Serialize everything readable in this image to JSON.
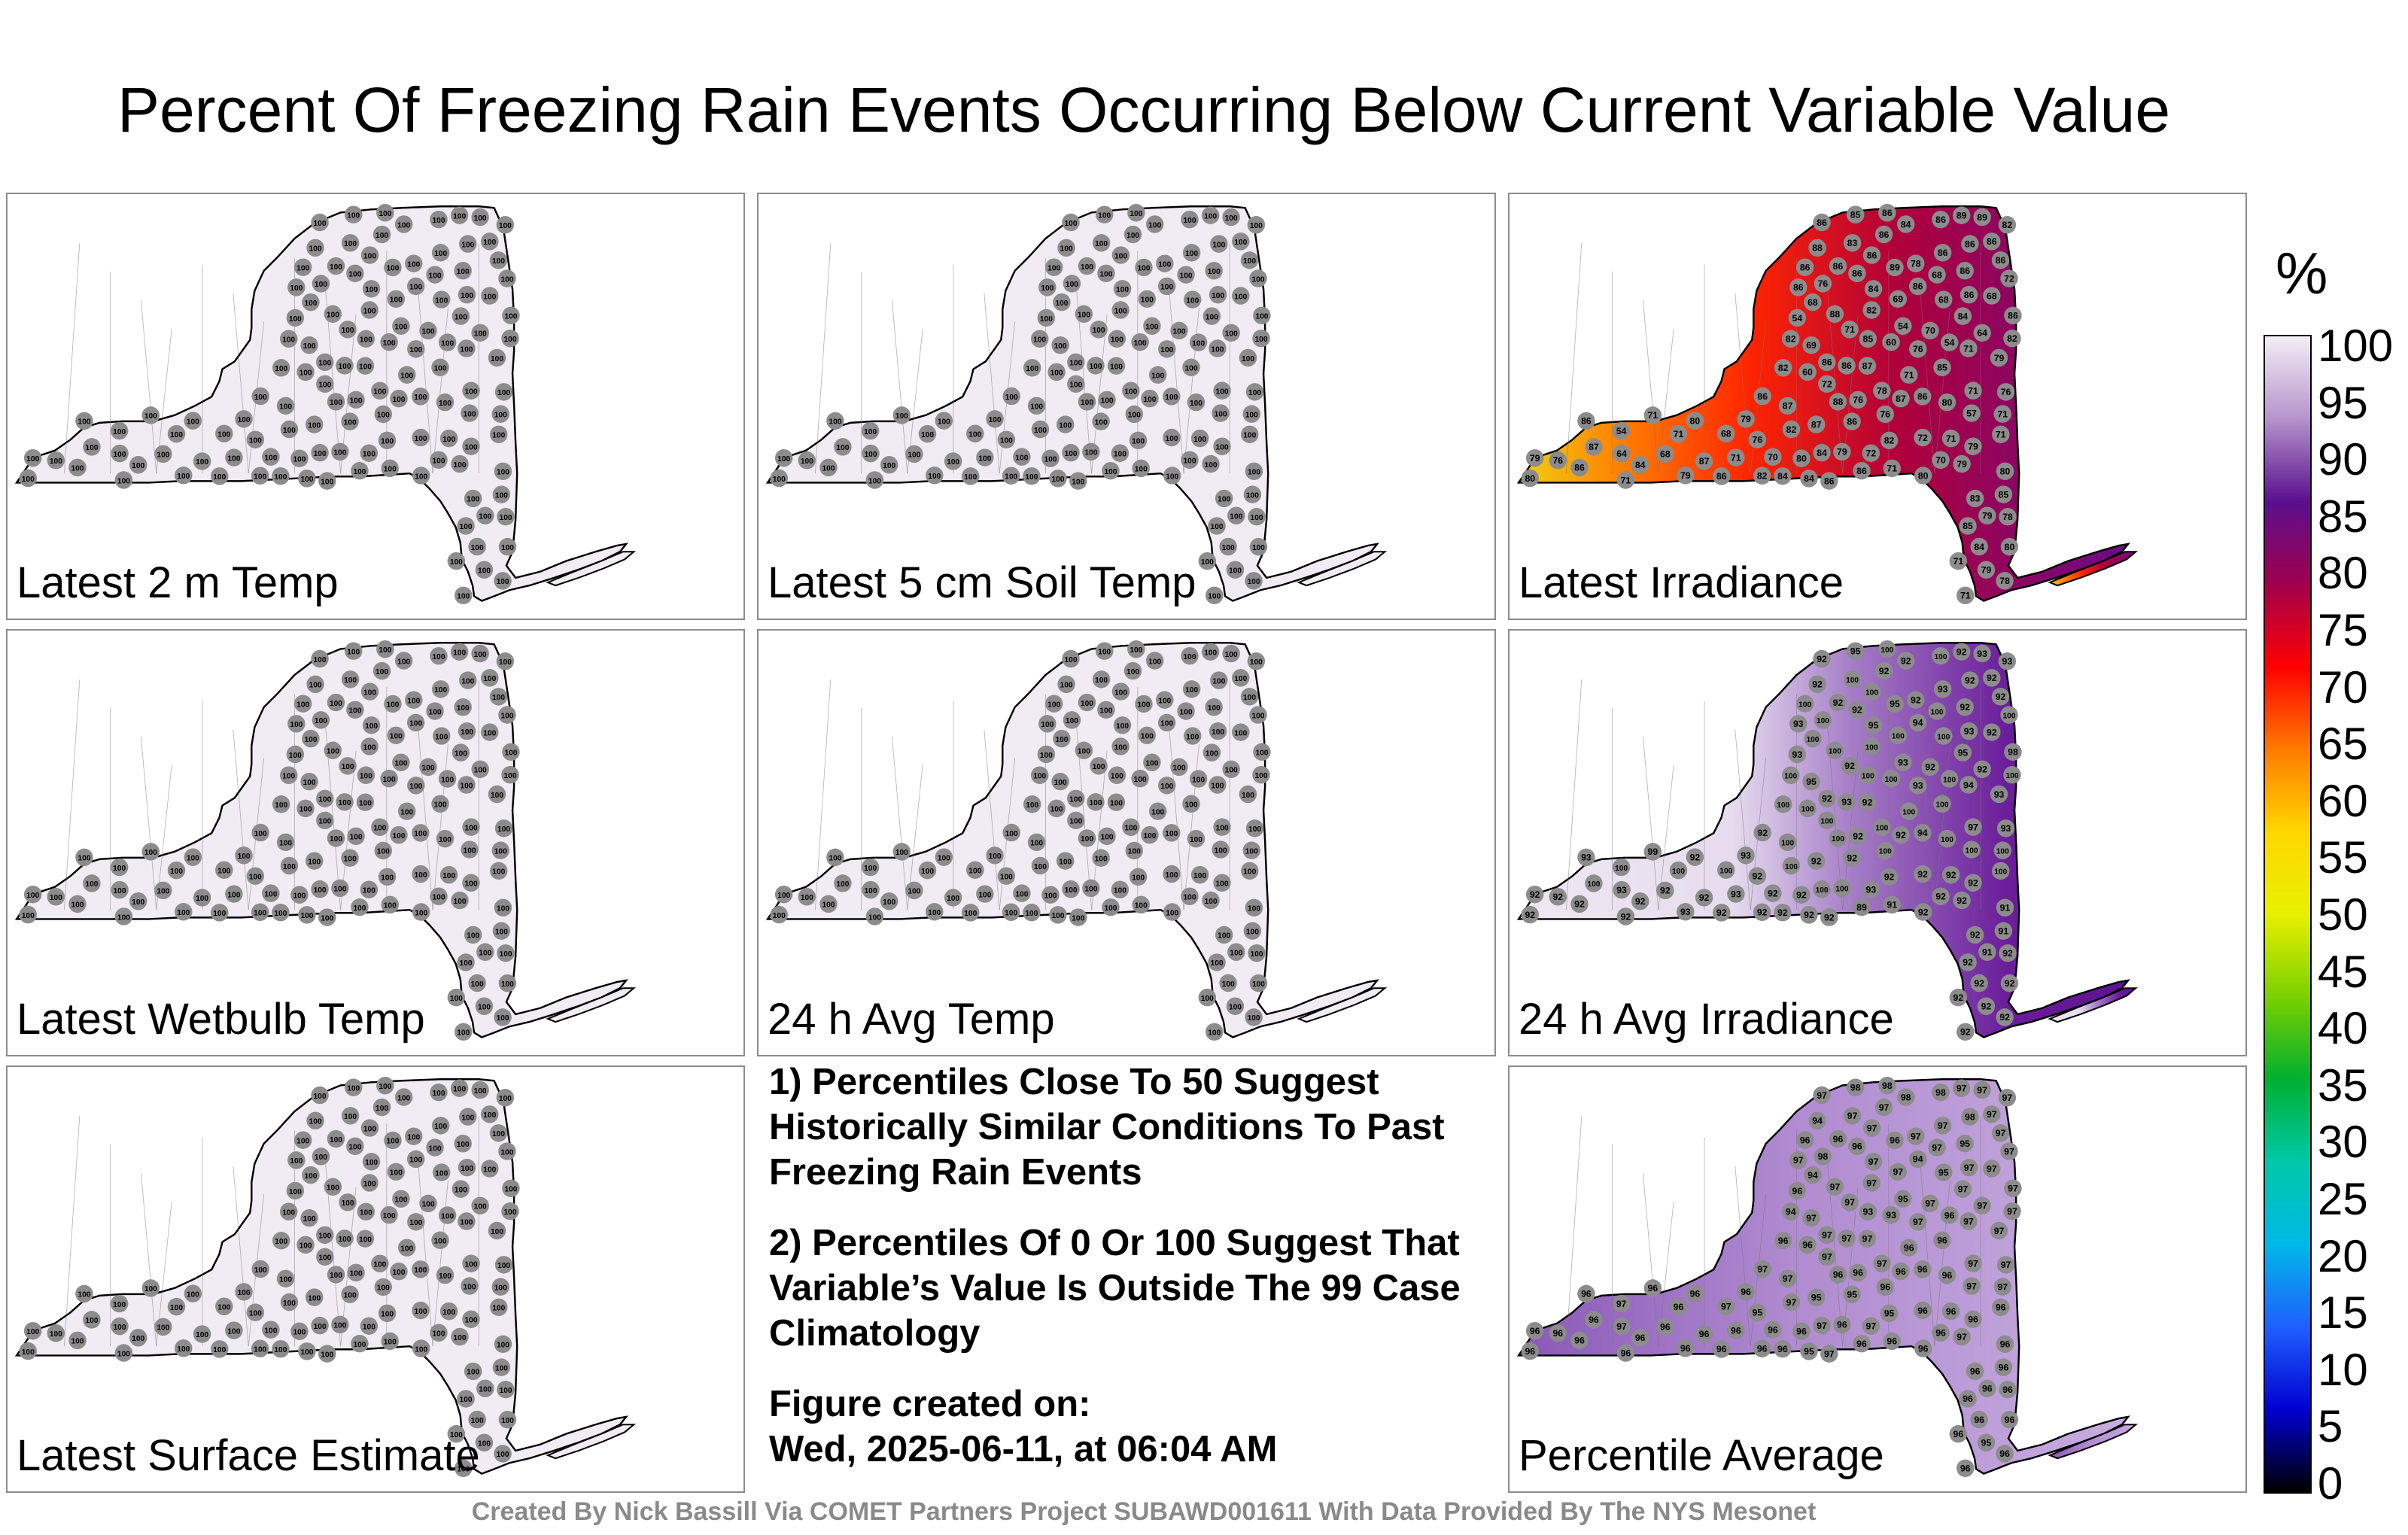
{
  "title": "Percent Of Freezing Rain Events Occurring Below Current Variable Value",
  "panels": [
    {
      "id": "p1",
      "label": "Latest 2 m Temp",
      "fill": "uniform",
      "color": "#f1ebf3",
      "values": [
        100,
        100,
        100,
        100,
        100,
        100,
        100,
        100,
        100,
        100,
        100,
        100,
        100,
        100,
        100,
        100,
        100,
        100,
        100,
        100,
        100,
        100,
        100,
        100,
        100,
        100,
        100,
        100,
        100,
        100,
        100,
        100,
        100,
        100,
        100,
        100,
        100,
        100,
        100,
        100,
        100,
        100,
        100,
        100,
        100,
        100,
        100,
        100,
        100,
        100,
        100,
        100,
        100,
        100,
        100,
        100,
        100,
        100,
        100,
        100,
        100,
        100,
        100,
        100,
        100,
        100,
        100,
        100,
        100,
        100,
        100,
        100,
        100,
        100,
        100,
        100,
        100,
        100,
        100,
        100,
        100,
        100,
        100,
        100,
        100,
        100,
        100,
        100,
        100,
        100,
        100,
        100,
        100,
        100,
        100,
        100,
        100,
        100,
        100,
        100,
        100,
        100,
        100,
        100,
        100,
        100,
        100,
        100,
        100,
        100,
        100,
        100,
        100,
        100,
        100,
        100,
        100,
        100,
        100,
        100,
        100,
        100,
        100,
        100,
        100,
        100,
        100
      ]
    },
    {
      "id": "p2",
      "label": "Latest 5 cm Soil Temp",
      "fill": "uniform",
      "color": "#f1ebf3",
      "values": [
        100,
        100,
        100,
        100,
        100,
        100,
        100,
        100,
        100,
        100,
        100,
        100,
        100,
        100,
        100,
        100,
        100,
        100,
        100,
        100,
        100,
        100,
        100,
        100,
        100,
        100,
        100,
        100,
        100,
        100,
        100,
        100,
        100,
        100,
        100,
        100,
        100,
        100,
        100,
        100,
        100,
        100,
        100,
        100,
        100,
        100,
        100,
        100,
        100,
        100,
        100,
        100,
        100,
        100,
        100,
        100,
        100,
        100,
        100,
        100,
        100,
        100,
        100,
        100,
        100,
        100,
        100,
        100,
        100,
        100,
        100,
        100,
        100,
        100,
        100,
        100,
        100,
        100,
        100,
        100,
        100,
        100,
        100,
        100,
        100,
        100,
        100,
        100,
        100,
        100,
        100,
        100,
        100,
        100,
        100,
        100,
        100,
        100,
        100,
        100,
        100,
        100,
        100,
        100,
        100,
        100,
        100,
        100,
        100,
        100,
        100,
        100,
        100,
        100,
        100,
        100,
        100,
        100,
        100,
        100,
        100,
        100,
        100,
        100,
        100,
        100,
        100
      ]
    },
    {
      "id": "p3",
      "label": "Latest Irradiance",
      "fill": "irradiance",
      "values": [
        86,
        86,
        89,
        89,
        86,
        86,
        84,
        82,
        86,
        86,
        83,
        86,
        88,
        86,
        86,
        86,
        78,
        86,
        86,
        89,
        86,
        86,
        68,
        72,
        76,
        86,
        86,
        84,
        86,
        68,
        69,
        68,
        68,
        82,
        88,
        86,
        84,
        54,
        54,
        71,
        70,
        64,
        82,
        82,
        85,
        60,
        54,
        69,
        71,
        76,
        79,
        86,
        86,
        87,
        85,
        82,
        60,
        71,
        72,
        71,
        78,
        76,
        86,
        86,
        87,
        76,
        88,
        80,
        87,
        57,
        71,
        76,
        71,
        79,
        80,
        86,
        86,
        87,
        82,
        54,
        68,
        71,
        71,
        72,
        71,
        76,
        82,
        79,
        87,
        79,
        84,
        72,
        64,
        68,
        70,
        71,
        79,
        80,
        70,
        76,
        87,
        79,
        84,
        86,
        71,
        86,
        80,
        79,
        80,
        82,
        84,
        86,
        80,
        84,
        71,
        86,
        85,
        83,
        79,
        78,
        85,
        84,
        80,
        71,
        79,
        78,
        71,
        86,
        85
      ]
    },
    {
      "id": "p4",
      "label": "Latest Wetbulb Temp",
      "fill": "uniform",
      "color": "#f1ebf3",
      "values": [
        100,
        100,
        100,
        100,
        100,
        100,
        100,
        100,
        100,
        100,
        100,
        100,
        100,
        100,
        100,
        100,
        100,
        100,
        100,
        100,
        100,
        100,
        100,
        100,
        100,
        100,
        100,
        100,
        100,
        100,
        100,
        100,
        100,
        100,
        100,
        100,
        100,
        100,
        100,
        100,
        100,
        100,
        100,
        100,
        100,
        100,
        100,
        100,
        100,
        100,
        100,
        100,
        100,
        100,
        100,
        100,
        100,
        100,
        100,
        100,
        100,
        100,
        100,
        100,
        100,
        100,
        100,
        100,
        100,
        100,
        100,
        100,
        100,
        100,
        100,
        100,
        100,
        100,
        100,
        100,
        100,
        100,
        100,
        100,
        100,
        100,
        100,
        100,
        100,
        100,
        100,
        100,
        100,
        100,
        100,
        100,
        100,
        100,
        100,
        100,
        100,
        100,
        100,
        100,
        100,
        100,
        100,
        100,
        100,
        100,
        100,
        100,
        100,
        100,
        100,
        100,
        100,
        100,
        100,
        100,
        100,
        100,
        100,
        100,
        100,
        100,
        100
      ]
    },
    {
      "id": "p5",
      "label": "24 h Avg Temp",
      "fill": "uniform",
      "color": "#f1ebf3",
      "values": [
        100,
        100,
        100,
        100,
        100,
        100,
        100,
        100,
        100,
        100,
        100,
        100,
        100,
        100,
        100,
        100,
        100,
        100,
        100,
        100,
        100,
        100,
        100,
        100,
        100,
        100,
        100,
        100,
        100,
        100,
        100,
        100,
        100,
        100,
        100,
        100,
        100,
        100,
        100,
        100,
        100,
        100,
        100,
        100,
        100,
        100,
        100,
        100,
        100,
        100,
        100,
        100,
        100,
        100,
        100,
        100,
        100,
        100,
        100,
        100,
        100,
        100,
        100,
        100,
        100,
        100,
        100,
        100,
        100,
        100,
        100,
        100,
        100,
        100,
        100,
        100,
        100,
        100,
        100,
        100,
        100,
        100,
        100,
        100,
        100,
        100,
        100,
        100,
        100,
        100,
        100,
        100,
        100,
        100,
        100,
        100,
        100,
        100,
        100,
        100,
        100,
        100,
        100,
        100,
        100,
        100,
        100,
        100,
        100,
        100,
        100,
        100,
        100,
        100,
        100,
        100,
        100,
        100,
        100,
        100,
        100,
        100,
        100,
        100,
        100,
        100,
        100
      ]
    },
    {
      "id": "p6",
      "label": "24 h Avg Irradiance",
      "fill": "avg-irradiance",
      "values": [
        100,
        95,
        92,
        93,
        100,
        92,
        92,
        93,
        92,
        92,
        100,
        92,
        92,
        93,
        100,
        92,
        92,
        92,
        100,
        95,
        92,
        92,
        100,
        100,
        100,
        94,
        93,
        95,
        93,
        92,
        100,
        100,
        100,
        100,
        100,
        98,
        95,
        93,
        93,
        92,
        92,
        92,
        100,
        100,
        100,
        100,
        100,
        95,
        94,
        93,
        93,
        92,
        93,
        92,
        100,
        100,
        100,
        100,
        100,
        97,
        100,
        93,
        92,
        94,
        92,
        92,
        100,
        100,
        100,
        100,
        100,
        100,
        99,
        93,
        92,
        93,
        92,
        92,
        100,
        100,
        100,
        100,
        100,
        92,
        92,
        92,
        92,
        92,
        100,
        100,
        100,
        93,
        93,
        92,
        92,
        93,
        92,
        92,
        92,
        92,
        92,
        92,
        92,
        92,
        91,
        89,
        91,
        93,
        92,
        92,
        92,
        92,
        92,
        92,
        92,
        92,
        91,
        92,
        91,
        92,
        92,
        92,
        92,
        92,
        92,
        92,
        92
      ]
    },
    {
      "id": "p7",
      "label": "Latest Surface Estimate",
      "fill": "uniform",
      "color": "#f1ebf3",
      "values": [
        100,
        100,
        100,
        100,
        100,
        100,
        100,
        100,
        100,
        100,
        100,
        100,
        100,
        100,
        100,
        100,
        100,
        100,
        100,
        100,
        100,
        100,
        100,
        100,
        100,
        100,
        100,
        100,
        100,
        100,
        100,
        100,
        100,
        100,
        100,
        100,
        100,
        100,
        100,
        100,
        100,
        100,
        100,
        100,
        100,
        100,
        100,
        100,
        100,
        100,
        100,
        100,
        100,
        100,
        100,
        100,
        100,
        100,
        100,
        100,
        100,
        100,
        100,
        100,
        100,
        100,
        100,
        100,
        100,
        100,
        100,
        100,
        100,
        100,
        100,
        100,
        100,
        100,
        100,
        100,
        100,
        100,
        100,
        100,
        100,
        100,
        100,
        100,
        100,
        100,
        100,
        100,
        100,
        100,
        100,
        100,
        100,
        100,
        100,
        100,
        100,
        100,
        100,
        100,
        100,
        100,
        100,
        100,
        100,
        100,
        100,
        100,
        100,
        100,
        100,
        100,
        100,
        100,
        100,
        100,
        100,
        100,
        100,
        100,
        100,
        100,
        100
      ]
    },
    {
      "id": "p9",
      "label": "Percentile Average",
      "fill": "average",
      "values": [
        98,
        98,
        97,
        97,
        98,
        97,
        98,
        97,
        97,
        97,
        97,
        98,
        94,
        97,
        97,
        97,
        97,
        96,
        96,
        96,
        95,
        96,
        97,
        97,
        98,
        94,
        97,
        97,
        97,
        97,
        97,
        95,
        94,
        97,
        97,
        97,
        97,
        96,
        95,
        97,
        97,
        97,
        97,
        94,
        93,
        93,
        96,
        97,
        97,
        97,
        97,
        97,
        97,
        97,
        96,
        96,
        96,
        96,
        97,
        97,
        97,
        97,
        97,
        96,
        96,
        96,
        96,
        96,
        97,
        97,
        97,
        96,
        96,
        96,
        96,
        96,
        95,
        95,
        97,
        97,
        97,
        96,
        96,
        96,
        96,
        95,
        95,
        96,
        96,
        96,
        97,
        97,
        97,
        96,
        96,
        96,
        96,
        96,
        96,
        96,
        96,
        97,
        96,
        96,
        96,
        96,
        96,
        96,
        96,
        96,
        96,
        96,
        96,
        95,
        96,
        97,
        96,
        96,
        96,
        96,
        96,
        96,
        96,
        96,
        95,
        96,
        96
      ]
    }
  ],
  "notes": [
    "1) Percentiles Close To 50 Suggest Historically Similar Conditions To Past Freezing Rain Events",
    "2) Percentiles Of 0 Or 100 Suggest That Variable’s Value Is Outside The 99 Case Climatology",
    "Figure created on:",
    "Wed, 2025-06-11, at 06:04 AM"
  ],
  "colorbar": {
    "unit": "%",
    "ticks": [
      "100",
      "95",
      "90",
      "85",
      "80",
      "75",
      "70",
      "65",
      "60",
      "55",
      "50",
      "45",
      "40",
      "35",
      "30",
      "25",
      "20",
      "15",
      "10",
      "5",
      "0"
    ],
    "stops": [
      "#f4eef6",
      "#b594cc",
      "#5b0f8e",
      "#a0004d",
      "#ff0000",
      "#ff7a00",
      "#ffd700",
      "#e8f000",
      "#7cd000",
      "#00b030",
      "#00c8a8",
      "#00b8e8",
      "#1f60ff",
      "#0000d0",
      "#000000"
    ]
  },
  "credit": "Created By Nick Bassill Via COMET Partners Project SUBAWD001611 With Data Provided By The NYS Mesonet"
}
